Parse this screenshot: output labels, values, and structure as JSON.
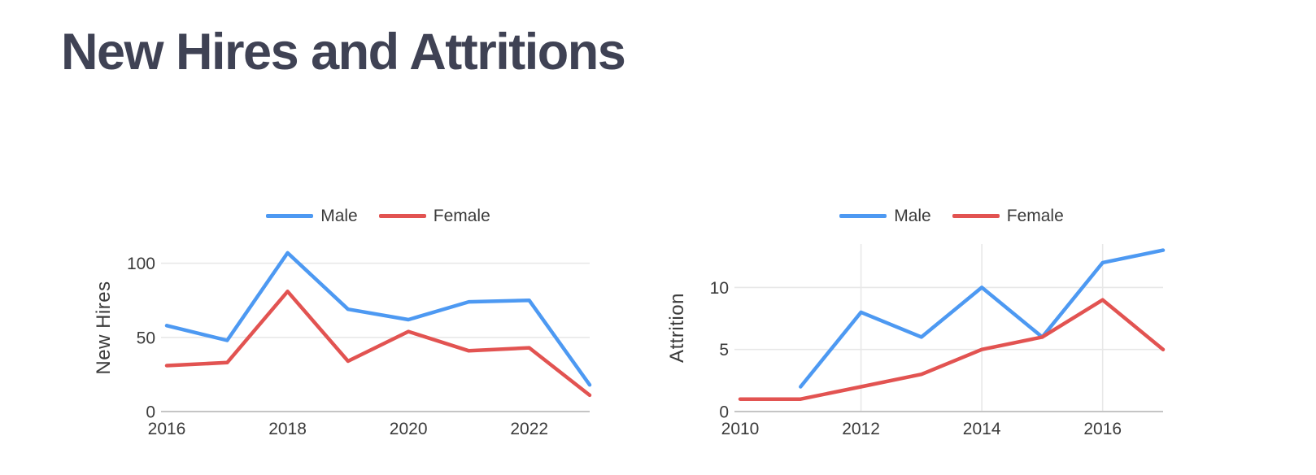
{
  "page": {
    "title": "New Hires and Attritions",
    "title_color": "#3F4254",
    "background": "#FFFFFF",
    "text_color": "#3B3B3B",
    "gridline_color": "#E8E8E8",
    "axisline_color": "#C5C5C5"
  },
  "chart_data": [
    {
      "type": "line",
      "title": "",
      "xlabel": "",
      "ylabel": "New Hires",
      "x": [
        2016,
        2017,
        2018,
        2019,
        2020,
        2021,
        2022,
        2023
      ],
      "x_tick_labels": [
        "2016",
        "2018",
        "2020",
        "2022"
      ],
      "x_tick_positions": [
        2016,
        2018,
        2020,
        2022
      ],
      "y_ticks": [
        0,
        50,
        100
      ],
      "ylim": [
        0,
        113
      ],
      "grid": {
        "horizontal": true,
        "vertical": false
      },
      "legend_position": "top-center",
      "series": [
        {
          "name": "Male",
          "color": "#4D99F2",
          "values": [
            58,
            48,
            107,
            69,
            62,
            74,
            75,
            18
          ]
        },
        {
          "name": "Female",
          "color": "#E25351",
          "values": [
            31,
            33,
            81,
            34,
            54,
            41,
            43,
            11
          ]
        }
      ]
    },
    {
      "type": "line",
      "title": "",
      "xlabel": "",
      "ylabel": "Attrition",
      "x": [
        2010,
        2011,
        2012,
        2013,
        2014,
        2015,
        2016,
        2017
      ],
      "x_tick_labels": [
        "2010",
        "2012",
        "2014",
        "2016"
      ],
      "x_tick_positions": [
        2010,
        2012,
        2014,
        2016
      ],
      "y_ticks": [
        0,
        5,
        10
      ],
      "ylim": [
        0,
        13.5
      ],
      "grid": {
        "horizontal": true,
        "vertical": true
      },
      "legend_position": "top-center",
      "series": [
        {
          "name": "Male",
          "color": "#4D99F2",
          "values": [
            null,
            2,
            8,
            6,
            10,
            6,
            12,
            13
          ]
        },
        {
          "name": "Female",
          "color": "#E25351",
          "values": [
            1,
            1,
            2,
            3,
            5,
            6,
            9,
            5
          ]
        }
      ]
    }
  ]
}
